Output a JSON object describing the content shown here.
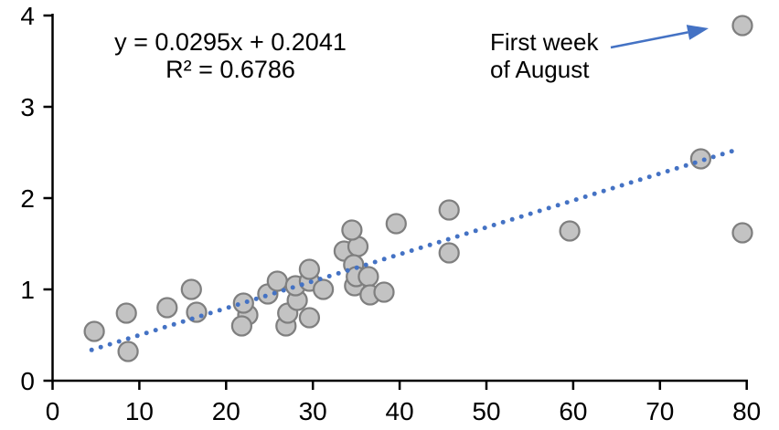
{
  "chart_data": {
    "type": "scatter",
    "title": "",
    "xlabel": "",
    "ylabel": "",
    "xlim": [
      0,
      80
    ],
    "ylim": [
      0,
      4
    ],
    "grid": false,
    "legend_position": "none",
    "points": [
      [
        4.8,
        0.54
      ],
      [
        8.5,
        0.74
      ],
      [
        8.7,
        0.32
      ],
      [
        13.2,
        0.8
      ],
      [
        16.0,
        1.0
      ],
      [
        16.6,
        0.75
      ],
      [
        22.5,
        0.72
      ],
      [
        22.0,
        0.85
      ],
      [
        21.8,
        0.6
      ],
      [
        24.8,
        0.95
      ],
      [
        25.9,
        1.09
      ],
      [
        26.9,
        0.6
      ],
      [
        27.1,
        0.74
      ],
      [
        28.2,
        0.88
      ],
      [
        28.0,
        1.04
      ],
      [
        29.6,
        1.09
      ],
      [
        29.6,
        1.22
      ],
      [
        29.6,
        0.69
      ],
      [
        31.2,
        1.0
      ],
      [
        33.6,
        1.42
      ],
      [
        35.2,
        1.47
      ],
      [
        34.5,
        1.65
      ],
      [
        34.7,
        1.27
      ],
      [
        34.8,
        1.04
      ],
      [
        35.0,
        1.14
      ],
      [
        36.4,
        1.14
      ],
      [
        36.6,
        0.94
      ],
      [
        38.2,
        0.97
      ],
      [
        39.6,
        1.72
      ],
      [
        45.7,
        1.87
      ],
      [
        45.7,
        1.4
      ],
      [
        59.6,
        1.64
      ],
      [
        74.7,
        2.43
      ],
      [
        79.5,
        3.89
      ],
      [
        79.5,
        1.62
      ]
    ],
    "trendline": {
      "slope": 0.0295,
      "intercept": 0.2041,
      "x_start": 4.5,
      "x_end": 79.2,
      "style": "dotted"
    },
    "equation": {
      "line1": "y = 0.0295x + 0.2041",
      "line2": "R² = 0.6786"
    },
    "annotation": {
      "line1": "First week",
      "line2": "of August",
      "points_to": [
        79.5,
        3.89
      ]
    },
    "x_axis": {
      "min": 0,
      "max": 80,
      "ticks": [
        0,
        10,
        20,
        30,
        40,
        50,
        60,
        70,
        80
      ]
    },
    "y_axis": {
      "min": 0,
      "max": 4,
      "ticks": [
        0,
        1,
        2,
        3,
        4
      ]
    },
    "colors": {
      "point_fill": "#C3C3C3",
      "point_stroke": "#7F7F7F",
      "trend": "#4472C4",
      "annotation_arrow": "#4472C4",
      "axis": "#000000",
      "text": "#000000",
      "background": "#FFFFFF"
    }
  }
}
